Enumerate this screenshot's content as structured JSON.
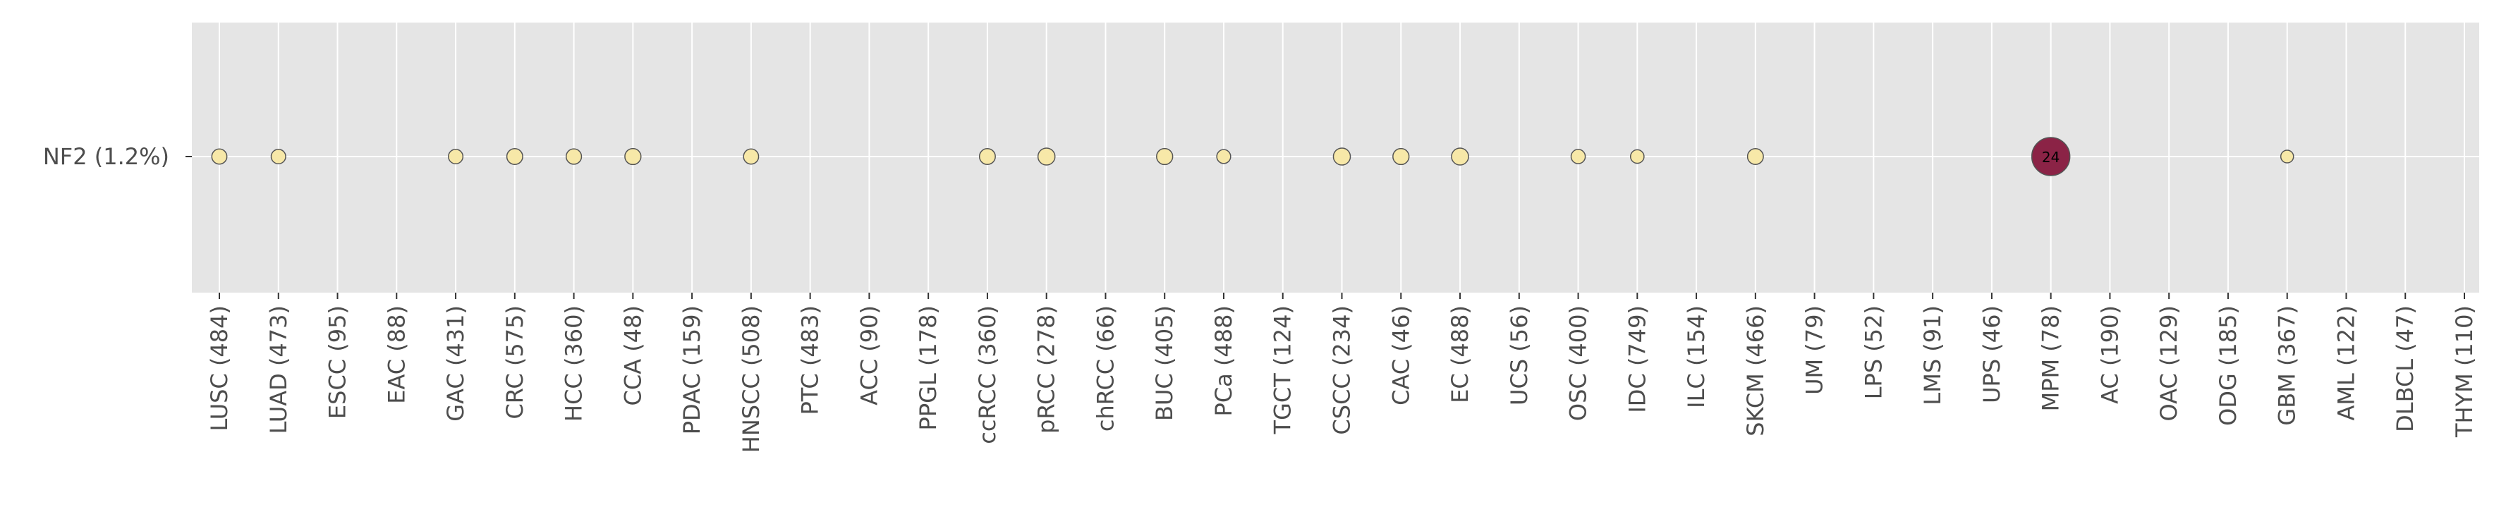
{
  "chart_data": {
    "type": "scatter",
    "title": "",
    "xlabel": "",
    "ylabel": "",
    "grid": true,
    "colors": {
      "background": "#e5e5e5",
      "grid": "#ffffff",
      "low": "#f7e8a8",
      "high": "#8b2346",
      "edge": "#555555",
      "text": "#4d4d4d"
    },
    "rows": [
      "NF2 (1.2%)"
    ],
    "categories": [
      "LUSC (484)",
      "LUAD (473)",
      "ESCC (95)",
      "EAC (88)",
      "GAC (431)",
      "CRC (575)",
      "HCC (360)",
      "CCA (48)",
      "PDAC (159)",
      "HNSCC (508)",
      "PTC (483)",
      "ACC (90)",
      "PPGL (178)",
      "ccRCC (360)",
      "pRCC (278)",
      "chRCC (66)",
      "BUC (405)",
      "PCa (488)",
      "TGCT (124)",
      "CSCC (234)",
      "CAC (46)",
      "EC (488)",
      "UCS (56)",
      "OSC (400)",
      "IDC (749)",
      "ILC (154)",
      "SKCM (466)",
      "UM (79)",
      "LPS (52)",
      "LMS (91)",
      "UPS (46)",
      "MPM (78)",
      "AC (190)",
      "OAC (129)",
      "ODG (185)",
      "GBM (367)",
      "AML (122)",
      "DLBCL (47)",
      "THYM (110)"
    ],
    "series": [
      {
        "row": "NF2 (1.2%)",
        "values": [
          1.2,
          1.0,
          null,
          null,
          1.0,
          1.5,
          1.3,
          1.6,
          null,
          1.2,
          null,
          null,
          null,
          1.5,
          2.0,
          null,
          1.6,
          0.8,
          null,
          2.0,
          1.6,
          2.0,
          null,
          0.9,
          0.7,
          null,
          1.5,
          null,
          null,
          null,
          null,
          24,
          null,
          null,
          null,
          0.5,
          null,
          null,
          null
        ],
        "labels": {
          "MPM (78)": "24"
        }
      }
    ]
  }
}
